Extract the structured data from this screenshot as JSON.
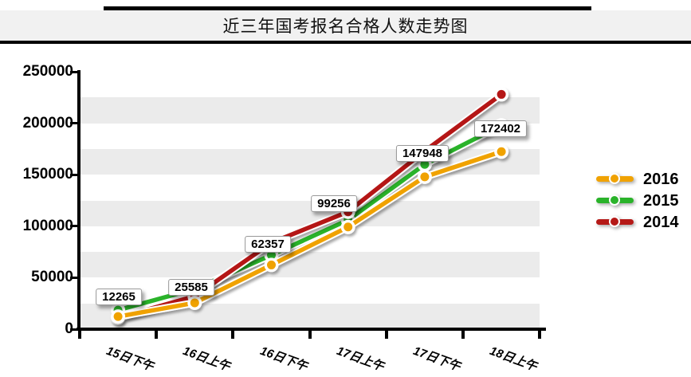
{
  "title": "近三年国考报名合格人数走势图",
  "chart_data": {
    "type": "line",
    "title": "近三年国考报名合格人数走势图",
    "categories": [
      "15日下午",
      "16日上午",
      "16日下午",
      "17日上午",
      "17日下午",
      "18日上午"
    ],
    "series": [
      {
        "name": "2016",
        "color": "#F0A202",
        "values": [
          12265,
          25585,
          62357,
          99256,
          147948,
          172402
        ]
      },
      {
        "name": "2015",
        "color": "#2AB32A",
        "values": [
          18500,
          39000,
          72000,
          106000,
          160000,
          198000
        ]
      },
      {
        "name": "2014",
        "color": "#B51917",
        "values": [
          11000,
          32000,
          84000,
          114000,
          173000,
          228000
        ]
      }
    ],
    "point_labels": [
      "12265",
      "25585",
      "62357",
      "99256",
      "147948",
      "172402"
    ],
    "point_labels_series": "2016",
    "ylim": [
      0,
      250000
    ],
    "ytick_step": 50000,
    "ytick_labels": [
      "0",
      "50000",
      "100000",
      "150000",
      "200000",
      "250000"
    ],
    "grid": "alternating horizontal bands every 25000",
    "legend_position": "right",
    "legend_items": [
      "2016",
      "2015",
      "2014"
    ]
  }
}
